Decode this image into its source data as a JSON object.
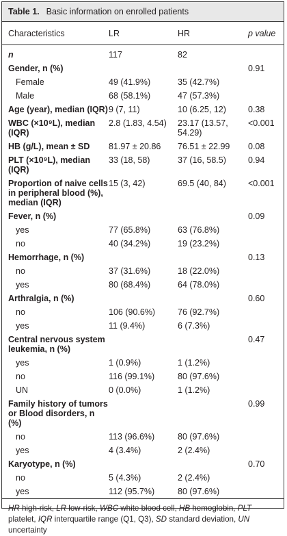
{
  "caption": {
    "label": "Table 1.",
    "text": "Basic information on enrolled patients"
  },
  "headers": [
    "Characteristics",
    "LR",
    "HR",
    "p value"
  ],
  "rows": [
    {
      "label": "n",
      "lr": "117",
      "hr": "82",
      "p": "",
      "style": "italic-bold"
    },
    {
      "label": "Gender, n (%)",
      "lr": "",
      "hr": "",
      "p": "0.91",
      "style": "group"
    },
    {
      "label": "Female",
      "lr": "49 (41.9%)",
      "hr": "35 (42.7%)",
      "p": "",
      "style": "indent"
    },
    {
      "label": "Male",
      "lr": "68 (58.1%)",
      "hr": "47 (57.3%)",
      "p": "",
      "style": "indent"
    },
    {
      "label": "Age (year), median (IQR)",
      "lr": "9 (7, 11)",
      "hr": "10 (6.25, 12)",
      "p": "0.38",
      "style": "group"
    },
    {
      "label": "WBC (×10⁹L), median (IQR)",
      "lr": "2.8 (1.83, 4.54)",
      "hr": "23.17 (13.57, 54.29)",
      "p": "<0.001",
      "style": "group"
    },
    {
      "label": "HB (g/L), mean ± SD",
      "lr": "81.97 ± 20.86",
      "hr": "76.51 ± 22.99",
      "p": "0.08",
      "style": "group"
    },
    {
      "label": "PLT (×10⁹L), median (IQR)",
      "lr": "33 (18, 58)",
      "hr": "37 (16, 58.5)",
      "p": "0.94",
      "style": "group"
    },
    {
      "label": "Proportion of naive cells in peripheral blood (%), median (IQR)",
      "lr": "15 (3, 42)",
      "hr": "69.5 (40, 84)",
      "p": "<0.001",
      "style": "group"
    },
    {
      "label": "Fever, n (%)",
      "lr": "",
      "hr": "",
      "p": "0.09",
      "style": "group"
    },
    {
      "label": "yes",
      "lr": "77 (65.8%)",
      "hr": "63 (76.8%)",
      "p": "",
      "style": "indent"
    },
    {
      "label": "no",
      "lr": "40 (34.2%)",
      "hr": "19 (23.2%)",
      "p": "",
      "style": "indent"
    },
    {
      "label": "Hemorrhage, n (%)",
      "lr": "",
      "hr": "",
      "p": "0.13",
      "style": "group"
    },
    {
      "label": "no",
      "lr": "37 (31.6%)",
      "hr": "18 (22.0%)",
      "p": "",
      "style": "indent"
    },
    {
      "label": "yes",
      "lr": "80 (68.4%)",
      "hr": "64 (78.0%)",
      "p": "",
      "style": "indent"
    },
    {
      "label": "Arthralgia, n (%)",
      "lr": "",
      "hr": "",
      "p": "0.60",
      "style": "group"
    },
    {
      "label": "no",
      "lr": "106 (90.6%)",
      "hr": "76 (92.7%)",
      "p": "",
      "style": "indent"
    },
    {
      "label": "yes",
      "lr": "11 (9.4%)",
      "hr": "6 (7.3%)",
      "p": "",
      "style": "indent"
    },
    {
      "label": "Central nervous system leukemia, n (%)",
      "lr": "",
      "hr": "",
      "p": "0.47",
      "style": "group"
    },
    {
      "label": "yes",
      "lr": "1 (0.9%)",
      "hr": "1 (1.2%)",
      "p": "",
      "style": "indent"
    },
    {
      "label": "no",
      "lr": "116 (99.1%)",
      "hr": "80 (97.6%)",
      "p": "",
      "style": "indent"
    },
    {
      "label": "UN",
      "lr": "0 (0.0%)",
      "hr": "1 (1.2%)",
      "p": "",
      "style": "indent"
    },
    {
      "label": "Family history of tumors or Blood disorders, n (%)",
      "lr": "",
      "hr": "",
      "p": "0.99",
      "style": "group"
    },
    {
      "label": "no",
      "lr": "113 (96.6%)",
      "hr": "80 (97.6%)",
      "p": "",
      "style": "indent"
    },
    {
      "label": "yes",
      "lr": "4 (3.4%)",
      "hr": "2 (2.4%)",
      "p": "",
      "style": "indent"
    },
    {
      "label": "Karyotype, n (%)",
      "lr": "",
      "hr": "",
      "p": "0.70",
      "style": "group"
    },
    {
      "label": "no",
      "lr": "5 (4.3%)",
      "hr": "2 (2.4%)",
      "p": "",
      "style": "indent"
    },
    {
      "label": "yes",
      "lr": "112 (95.7%)",
      "hr": "80 (97.6%)",
      "p": "",
      "style": "indent"
    }
  ],
  "footnote": [
    {
      "abbr": "HR",
      "text": " high-risk, "
    },
    {
      "abbr": "LR",
      "text": " low-risk, "
    },
    {
      "abbr": "WBC",
      "text": " white blood cell, "
    },
    {
      "abbr": "HB",
      "text": " hemoglobin, "
    },
    {
      "abbr": "PLT",
      "text": " platelet, "
    },
    {
      "abbr": "IQR",
      "text": " interquartile range (Q1, Q3), "
    },
    {
      "abbr": "SD",
      "text": " standard deviation, "
    },
    {
      "abbr": "UN",
      "text": " uncertainty"
    }
  ]
}
